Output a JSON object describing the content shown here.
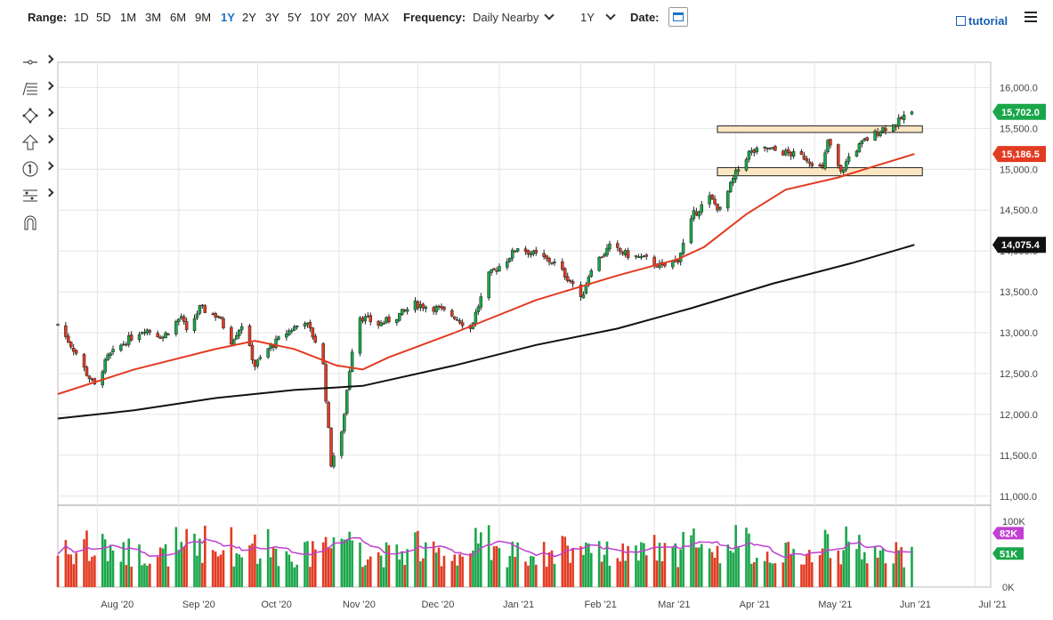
{
  "toolbar": {
    "range_label": "Range:",
    "ranges": [
      "1D",
      "5D",
      "1M",
      "3M",
      "6M",
      "9M",
      "1Y",
      "2Y",
      "3Y",
      "5Y",
      "10Y",
      "20Y",
      "MAX"
    ],
    "active_range": "1Y",
    "frequency_label": "Frequency:",
    "frequency_value": "Daily Nearby",
    "period_value": "1Y",
    "date_label": "Date:",
    "tutorial_label": "tutorial"
  },
  "tools": [
    "crosshair-icon",
    "trend-lines-icon",
    "shapes-icon",
    "arrow-up-icon",
    "number-1-icon",
    "fibonacci-icon",
    "magnet-icon"
  ],
  "colors": {
    "up": "#1aa64a",
    "down": "#e23b22",
    "ma_fast": "#e23b22",
    "ma_slow": "#111111",
    "volume_avg": "#c040d0",
    "zone_fill": "#fbe6c2",
    "accent": "#1a73c8"
  },
  "chart_data": {
    "type": "candlestick",
    "ylim": [
      10900,
      16200
    ],
    "y_ticks": [
      11000,
      11500,
      12000,
      12500,
      13000,
      13500,
      14000,
      14500,
      15000,
      15500,
      16000
    ],
    "y_tick_labels": [
      "11,000.0",
      "11,500.0",
      "12,000.0",
      "12,500.0",
      "13,000.0",
      "13,500.0",
      "14,000.0",
      "14,500.0",
      "15,000.0",
      "15,500.0",
      "16,000.0"
    ],
    "x_range": [
      "2020-07-17",
      "2021-07-07"
    ],
    "x_ticks": [
      {
        "date": "2020-08-01",
        "label": "Aug '20"
      },
      {
        "date": "2020-09-01",
        "label": "Sep '20"
      },
      {
        "date": "2020-10-01",
        "label": "Oct '20"
      },
      {
        "date": "2020-11-01",
        "label": "Nov '20"
      },
      {
        "date": "2020-12-01",
        "label": "Dec '20"
      },
      {
        "date": "2021-01-01",
        "label": "Jan '21"
      },
      {
        "date": "2021-02-01",
        "label": "Feb '21"
      },
      {
        "date": "2021-03-01",
        "label": "Mar '21"
      },
      {
        "date": "2021-04-01",
        "label": "Apr '21"
      },
      {
        "date": "2021-05-01",
        "label": "May '21"
      },
      {
        "date": "2021-06-01",
        "label": "Jun '21"
      },
      {
        "date": "2021-07-01",
        "label": "Jul '21"
      }
    ],
    "close_path": [
      [
        "2020-07-17",
        13100
      ],
      [
        "2020-07-24",
        12750
      ],
      [
        "2020-07-28",
        12500
      ],
      [
        "2020-07-31",
        12350
      ],
      [
        "2020-08-05",
        12700
      ],
      [
        "2020-08-12",
        12900
      ],
      [
        "2020-08-19",
        13050
      ],
      [
        "2020-08-26",
        12950
      ],
      [
        "2020-09-02",
        13200
      ],
      [
        "2020-09-04",
        13000
      ],
      [
        "2020-09-09",
        13300
      ],
      [
        "2020-09-16",
        13200
      ],
      [
        "2020-09-21",
        12900
      ],
      [
        "2020-09-25",
        13100
      ],
      [
        "2020-09-30",
        12600
      ],
      [
        "2020-10-05",
        12800
      ],
      [
        "2020-10-12",
        13000
      ],
      [
        "2020-10-19",
        13150
      ],
      [
        "2020-10-23",
        12900
      ],
      [
        "2020-10-26",
        12600
      ],
      [
        "2020-10-29",
        11400
      ],
      [
        "2020-10-30",
        11500
      ],
      [
        "2020-11-02",
        11750
      ],
      [
        "2020-11-04",
        12300
      ],
      [
        "2020-11-06",
        12800
      ],
      [
        "2020-11-09",
        13200
      ],
      [
        "2020-11-16",
        13100
      ],
      [
        "2020-11-23",
        13200
      ],
      [
        "2020-11-30",
        13350
      ],
      [
        "2020-12-08",
        13300
      ],
      [
        "2020-12-15",
        13200
      ],
      [
        "2020-12-21",
        13050
      ],
      [
        "2020-12-28",
        13700
      ],
      [
        "2021-01-04",
        13900
      ],
      [
        "2021-01-08",
        14050
      ],
      [
        "2021-01-15",
        13950
      ],
      [
        "2021-01-22",
        13850
      ],
      [
        "2021-01-29",
        13600
      ],
      [
        "2021-02-01",
        13400
      ],
      [
        "2021-02-05",
        13800
      ],
      [
        "2021-02-12",
        14050
      ],
      [
        "2021-02-19",
        13950
      ],
      [
        "2021-02-26",
        13900
      ],
      [
        "2021-03-04",
        13800
      ],
      [
        "2021-03-10",
        13900
      ],
      [
        "2021-03-16",
        14450
      ],
      [
        "2021-03-22",
        14650
      ],
      [
        "2021-03-26",
        14500
      ],
      [
        "2021-04-01",
        14950
      ],
      [
        "2021-04-06",
        15200
      ],
      [
        "2021-04-13",
        15250
      ],
      [
        "2021-04-20",
        15200
      ],
      [
        "2021-04-27",
        15150
      ],
      [
        "2021-05-04",
        15000
      ],
      [
        "2021-05-06",
        15350
      ],
      [
        "2021-05-11",
        14950
      ],
      [
        "2021-05-14",
        15150
      ],
      [
        "2021-05-20",
        15350
      ],
      [
        "2021-05-27",
        15500
      ],
      [
        "2021-06-01",
        15550
      ],
      [
        "2021-06-04",
        15650
      ],
      [
        "2021-06-07",
        15702
      ]
    ],
    "series": [
      {
        "type": "line",
        "points": [
          [
            "2020-07-17",
            12250
          ],
          [
            "2020-08-15",
            12550
          ],
          [
            "2020-09-15",
            12800
          ],
          [
            "2020-09-30",
            12900
          ],
          [
            "2020-10-15",
            12800
          ],
          [
            "2020-10-31",
            12600
          ],
          [
            "2020-11-10",
            12550
          ],
          [
            "2020-11-20",
            12700
          ],
          [
            "2020-12-15",
            13000
          ],
          [
            "2021-01-15",
            13400
          ],
          [
            "2021-02-15",
            13700
          ],
          [
            "2021-03-10",
            13900
          ],
          [
            "2021-03-20",
            14050
          ],
          [
            "2021-04-05",
            14450
          ],
          [
            "2021-04-20",
            14750
          ],
          [
            "2021-05-10",
            14900
          ],
          [
            "2021-05-25",
            15050
          ],
          [
            "2021-06-08",
            15186.5
          ]
        ]
      },
      {
        "type": "line",
        "points": [
          [
            "2020-07-17",
            11950
          ],
          [
            "2020-08-15",
            12050
          ],
          [
            "2020-09-15",
            12200
          ],
          [
            "2020-10-15",
            12300
          ],
          [
            "2020-11-10",
            12350
          ],
          [
            "2020-12-15",
            12600
          ],
          [
            "2021-01-15",
            12850
          ],
          [
            "2021-02-15",
            13050
          ],
          [
            "2021-03-15",
            13300
          ],
          [
            "2021-04-15",
            13600
          ],
          [
            "2021-05-15",
            13850
          ],
          [
            "2021-06-08",
            14075.4
          ]
        ]
      }
    ],
    "price_badges": [
      {
        "label": "15,702.0",
        "value": 15702.0,
        "color": "#1aa64a"
      },
      {
        "label": "15,186.5",
        "value": 15186.5,
        "color": "#e23b22"
      },
      {
        "label": "14,075.4",
        "value": 14075.4,
        "color": "#111111"
      }
    ],
    "zones": [
      {
        "start": "2021-03-25",
        "end": "2021-06-11",
        "low": 15450,
        "high": 15530
      },
      {
        "start": "2021-03-25",
        "end": "2021-06-11",
        "low": 14920,
        "high": 15020
      }
    ],
    "volume": {
      "ylim": [
        0,
        100
      ],
      "y_ticks": [
        0,
        100
      ],
      "y_tick_labels": [
        "0K",
        "100K"
      ],
      "last_avg_label": "82K",
      "last_volume_label": "51K",
      "last_avg": 82,
      "last_volume": 51
    }
  }
}
